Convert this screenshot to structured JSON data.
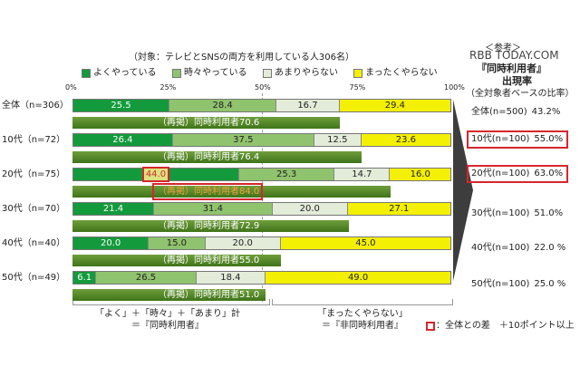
{
  "watermark": "RBB TODAY.COM",
  "chart_data": {
    "type": "bar",
    "stacked": true,
    "orientation": "horizontal",
    "title": "（対象：テレビとSNSの両方を利用している人306名）",
    "xlim": [
      0,
      100
    ],
    "x_ticks": [
      "0%",
      "25%",
      "50%",
      "75%",
      "100%"
    ],
    "categories": [
      "全体（n=306）",
      "10代（n=72）",
      "20代（n=75）",
      "30代（n=70）",
      "40代（n=40）",
      "50代（n=49）"
    ],
    "series": [
      {
        "name": "よくやっている",
        "color": "#139a3c",
        "values": [
          25.5,
          26.4,
          44.0,
          21.4,
          20.0,
          6.1
        ]
      },
      {
        "name": "時々やっている",
        "color": "#90c36d",
        "values": [
          28.4,
          37.5,
          25.3,
          31.4,
          15.0,
          26.5
        ]
      },
      {
        "name": "あまりやらない",
        "color": "#e3ecd9",
        "values": [
          16.7,
          12.5,
          14.7,
          20.0,
          20.0,
          18.4
        ]
      },
      {
        "name": "まったくやらない",
        "color": "#f4f003",
        "values": [
          29.4,
          23.6,
          16.0,
          27.1,
          45.0,
          49.0
        ]
      }
    ],
    "value_labels": [
      [
        "25.5",
        "28.4",
        "16.7",
        "29.4"
      ],
      [
        "26.4",
        "37.5",
        "12.5",
        "23.6"
      ],
      [
        "44.0",
        "25.3",
        "14.7",
        "16.0"
      ],
      [
        "21.4",
        "31.4",
        "20.0",
        "27.1"
      ],
      [
        "20.0",
        "15.0",
        "20.0",
        "45.0"
      ],
      [
        "6.1",
        "26.5",
        "18.4",
        "49.0"
      ]
    ],
    "subbar": {
      "label_prefix": "（再掲）同時利用者",
      "values": [
        70.6,
        76.4,
        84.0,
        72.9,
        55.0,
        51.0
      ],
      "labels": [
        "70.6",
        "76.4",
        "84.0",
        "72.9",
        "55.0",
        "51.0"
      ]
    },
    "highlighted": [
      {
        "row": 2,
        "target": "segment",
        "series": 0
      },
      {
        "row": 2,
        "target": "subbar"
      }
    ],
    "legend_position": "top"
  },
  "brackets": {
    "left_line1": "「よく」＋「時々」＋「あまり」計",
    "left_line2": "＝『同時利用者』",
    "right_line1": "「まったくやらない」",
    "right_line2": "＝『非同時利用者』"
  },
  "side_panel": {
    "top_label": "＜参考＞",
    "title": "『同時利用者』",
    "subtitle": "出現率",
    "note": "（全対象者ベースの比率）",
    "rows": [
      {
        "group": "全体",
        "n": "(n=500)",
        "rate": "43.2%",
        "highlighted": false
      },
      {
        "group": "10代",
        "n": "(n=100)",
        "rate": "55.0%",
        "highlighted": true
      },
      {
        "group": "20代",
        "n": "(n=100)",
        "rate": "63.0%",
        "highlighted": true
      },
      {
        "group": "30代",
        "n": "(n=100)",
        "rate": "51.0%",
        "highlighted": false
      },
      {
        "group": "40代",
        "n": "(n=100)",
        "rate": "22.0 %",
        "highlighted": false
      },
      {
        "group": "50代",
        "n": "(n=100)",
        "rate": "25.0 %",
        "highlighted": false
      }
    ]
  },
  "footnote": "：全体との差　＋10ポイント以上"
}
